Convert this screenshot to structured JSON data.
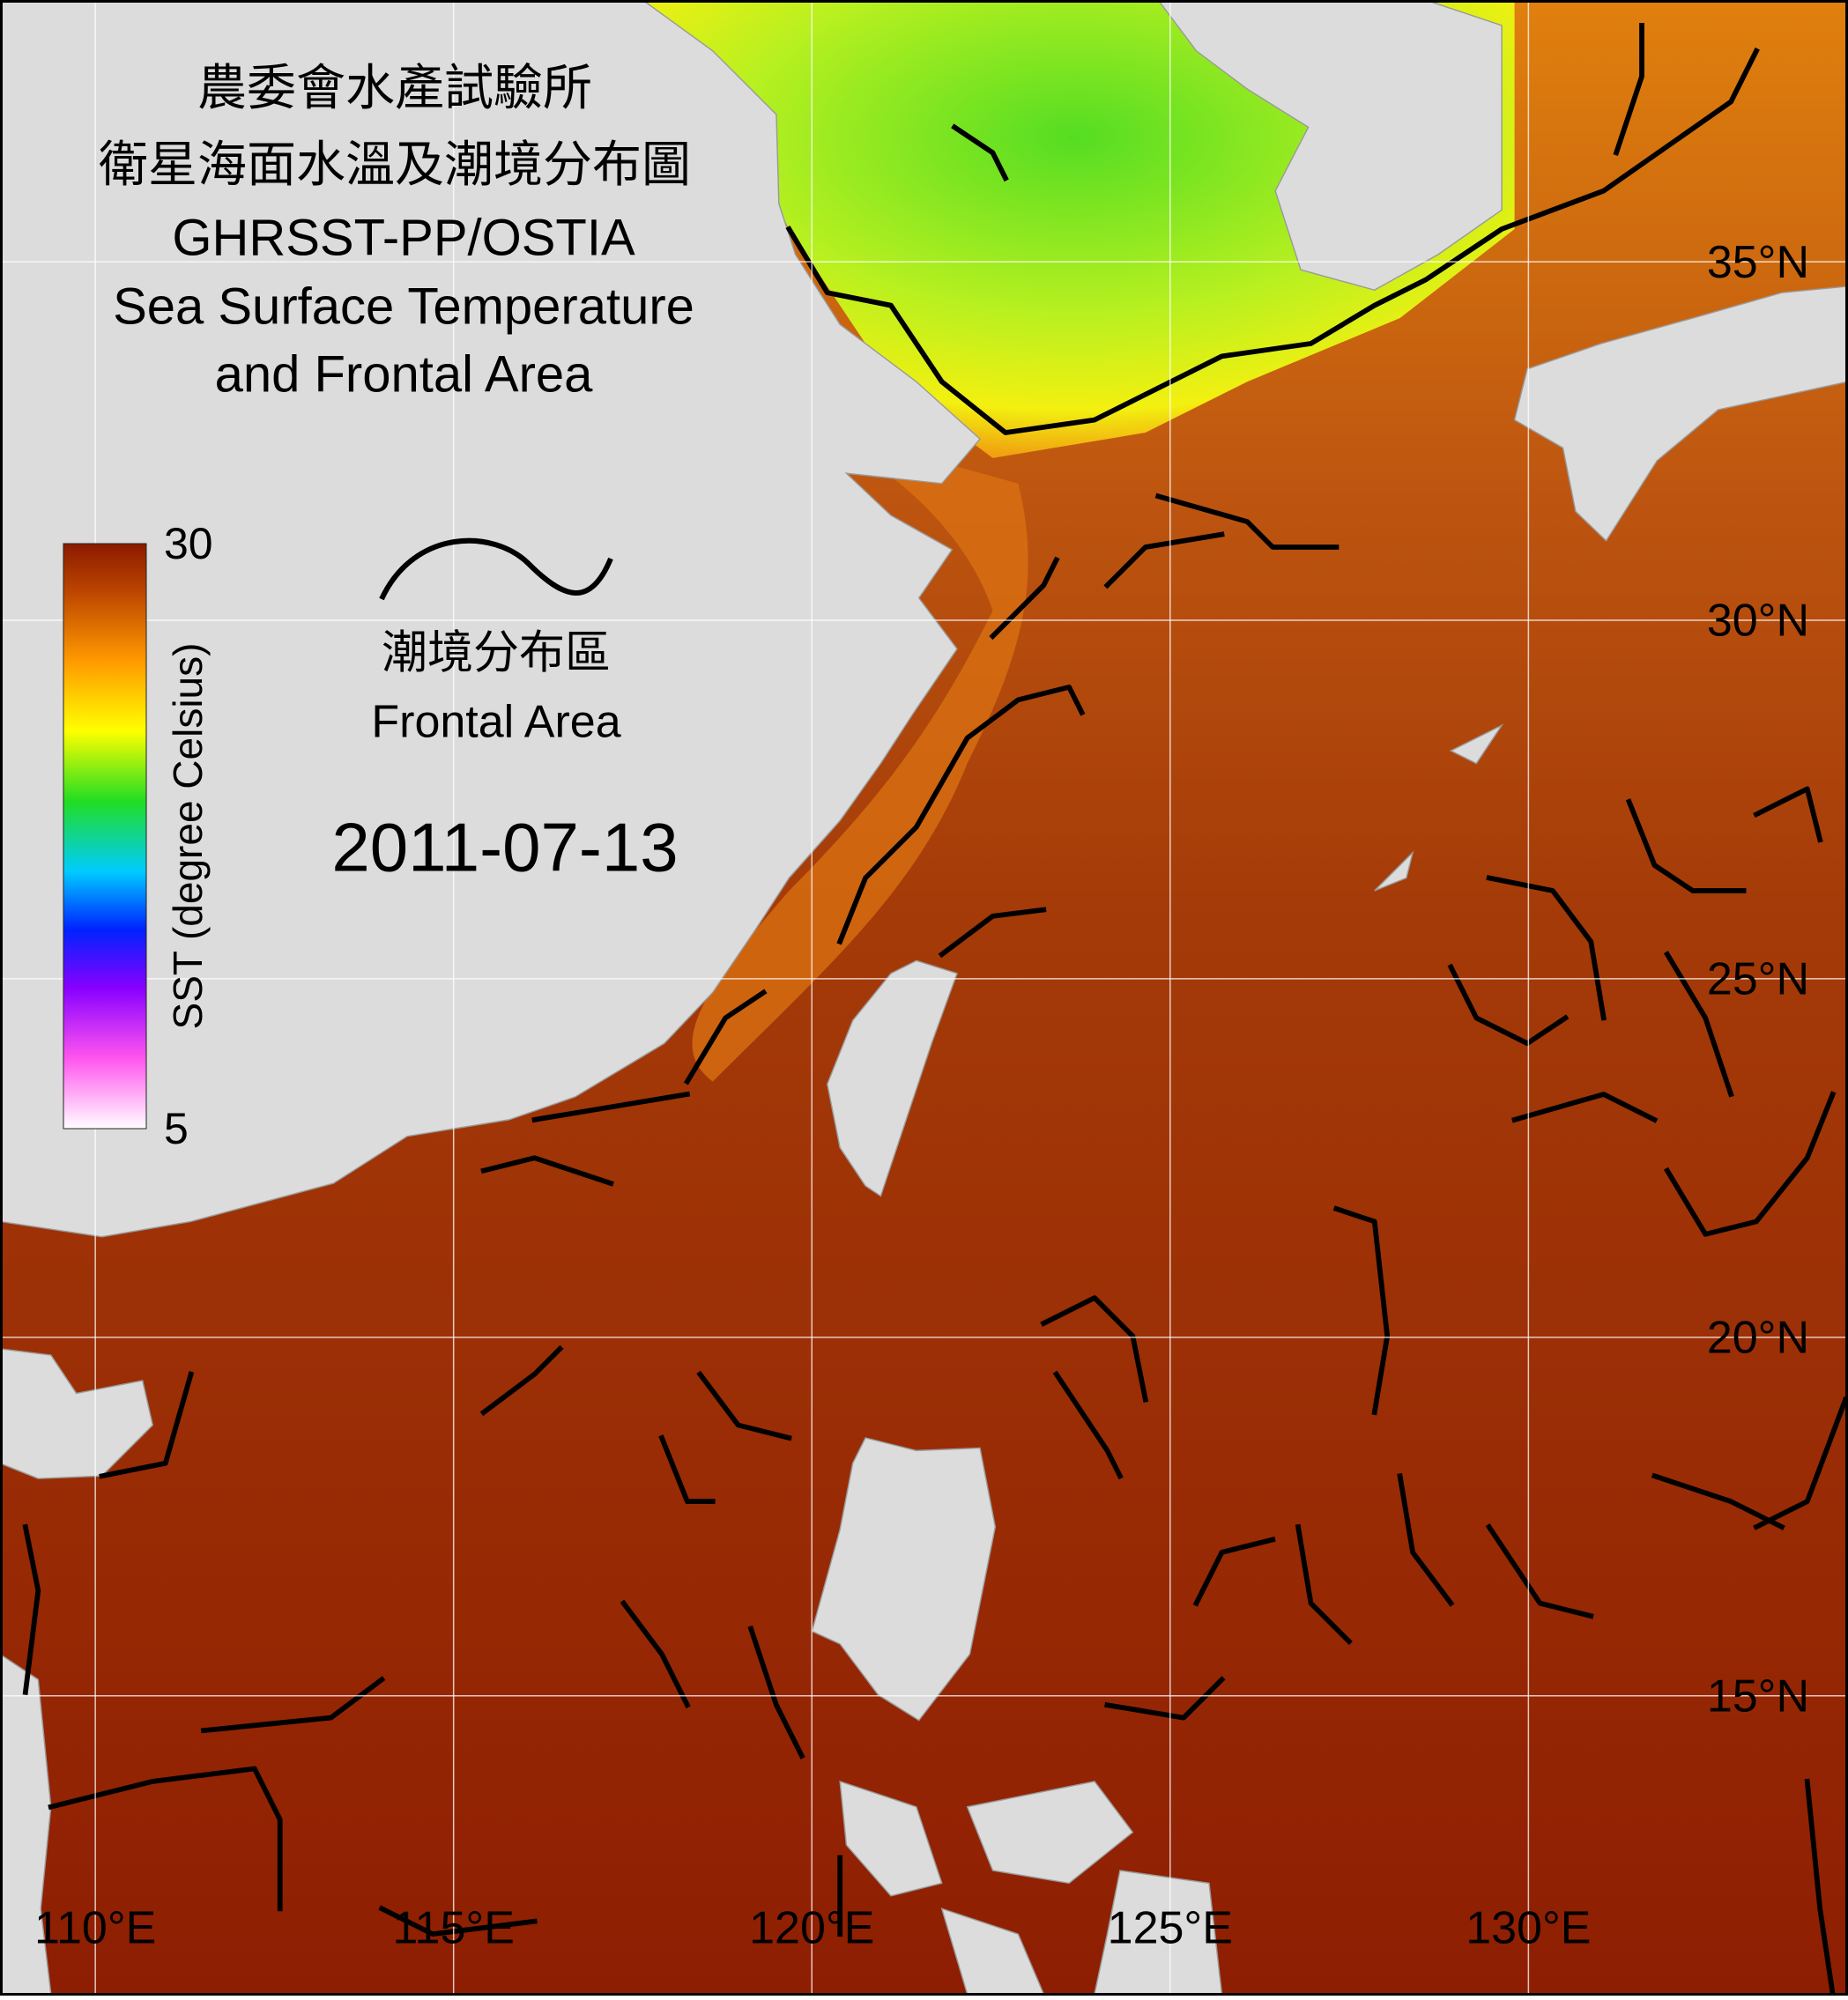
{
  "title": [
    "農委會水產試驗所",
    "衛星海面水溫及潮境分布圖",
    "GHRSST-PP/OSTIA",
    "Sea Surface Temperature",
    "and Frontal Area"
  ],
  "legend": {
    "label_zh": "潮境分布區",
    "label_en": "Frontal Area"
  },
  "date": "2011-07-13",
  "colorbar": {
    "label": "SST (degree Celsius)",
    "range": [
      5,
      30
    ],
    "ticks": [
      5,
      30
    ]
  },
  "map": {
    "lonlim": [
      108.67,
      134.46
    ],
    "latlim": [
      10.82,
      38.65
    ],
    "lon_ticks": [
      {
        "value": 110,
        "label": "110°E"
      },
      {
        "value": 115,
        "label": "115°E"
      },
      {
        "value": 120,
        "label": "120°E"
      },
      {
        "value": 125,
        "label": "125°E"
      },
      {
        "value": 130,
        "label": "130°E"
      }
    ],
    "lat_ticks": [
      {
        "value": 15,
        "label": "15°N"
      },
      {
        "value": 20,
        "label": "20°N"
      },
      {
        "value": 25,
        "label": "25°N"
      },
      {
        "value": 30,
        "label": "30°N"
      },
      {
        "value": 35,
        "label": "35°N"
      }
    ]
  }
}
